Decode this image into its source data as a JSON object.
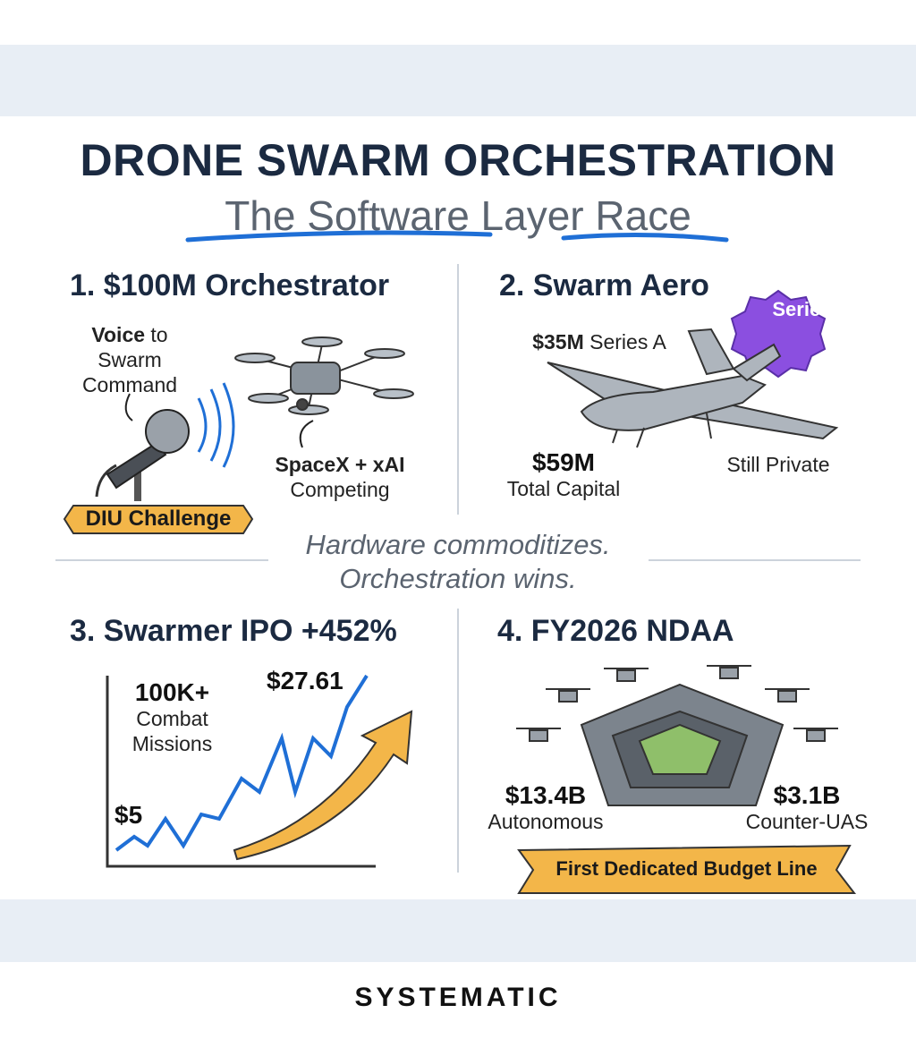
{
  "header": {
    "title": "DRONE SWARM ORCHESTRATION",
    "subtitle": "The Software Layer Race"
  },
  "panels": [
    {
      "heading": "1. $100M Orchestrator",
      "callouts": [
        {
          "bold": "Voice",
          "text": "to Swarm Command"
        },
        {
          "bold": "SpaceX + xAI",
          "text": "Competing"
        }
      ],
      "ribbon": "DIU Challenge"
    },
    {
      "heading": "2. Swarm Aero",
      "badge": "Series A",
      "callouts": [
        {
          "bold": "$35M",
          "text": "Series A"
        },
        {
          "bold": "$59M",
          "text": "Total Capital"
        },
        {
          "text": "Still Private"
        }
      ]
    },
    {
      "heading": "3. Swarmer IPO +452%",
      "callouts": [
        {
          "bold": "100K+",
          "text": "Combat Missions"
        },
        {
          "bold": "$27.61"
        },
        {
          "bold": "$5"
        }
      ]
    },
    {
      "heading": "4. FY2026 NDAA",
      "callouts": [
        {
          "bold": "$13.4B",
          "text": "Autonomous"
        },
        {
          "bold": "$3.1B",
          "text": "Counter-UAS"
        }
      ],
      "ribbon": "First Dedicated Budget Line"
    }
  ],
  "center_quote": "Hardware commoditizes. Orchestration wins.",
  "footer": {
    "brand": "SYSTEMATIC"
  }
}
